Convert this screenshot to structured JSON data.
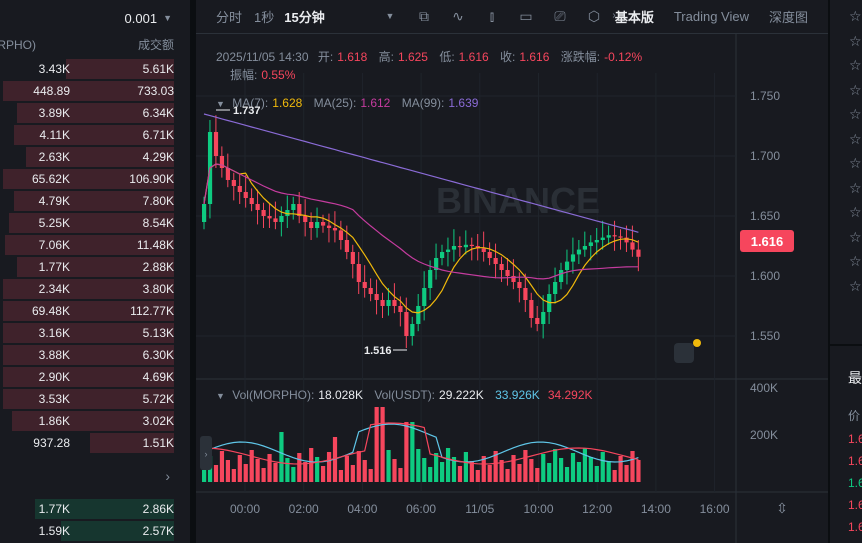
{
  "orderbook": {
    "tick": "0.001",
    "col_amount": "量(MORPHO)",
    "col_total": "成交额",
    "asks": [
      {
        "amount": "3.43K",
        "total": "5.61K",
        "depth": 0.62
      },
      {
        "amount": "448.89",
        "total": "733.03",
        "depth": 0.98
      },
      {
        "amount": "3.89K",
        "total": "6.34K",
        "depth": 0.9
      },
      {
        "amount": "4.11K",
        "total": "6.71K",
        "depth": 0.92
      },
      {
        "amount": "2.63K",
        "total": "4.29K",
        "depth": 0.85
      },
      {
        "amount": "65.62K",
        "total": "106.90K",
        "depth": 0.98
      },
      {
        "amount": "4.79K",
        "total": "7.80K",
        "depth": 0.92
      },
      {
        "amount": "5.25K",
        "total": "8.54K",
        "depth": 0.95
      },
      {
        "amount": "7.06K",
        "total": "11.48K",
        "depth": 0.97
      },
      {
        "amount": "1.77K",
        "total": "2.88K",
        "depth": 0.9
      },
      {
        "amount": "2.34K",
        "total": "3.80K",
        "depth": 0.98
      },
      {
        "amount": "69.48K",
        "total": "112.77K",
        "depth": 0.98
      },
      {
        "amount": "3.16K",
        "total": "5.13K",
        "depth": 0.98
      },
      {
        "amount": "3.88K",
        "total": "6.30K",
        "depth": 0.98
      },
      {
        "amount": "2.90K",
        "total": "4.69K",
        "depth": 0.98
      },
      {
        "amount": "3.53K",
        "total": "5.72K",
        "depth": 0.98
      },
      {
        "amount": "1.86K",
        "total": "3.02K",
        "depth": 0.93
      },
      {
        "amount": "937.28",
        "total": "1.51K",
        "depth": 0.48
      }
    ],
    "more": "›",
    "bids": [
      {
        "amount": "1.77K",
        "total": "2.86K",
        "depth": 0.8
      },
      {
        "amount": "1.59K",
        "total": "2.57K",
        "depth": 0.65
      }
    ]
  },
  "toolbar": {
    "time": "分时",
    "s1": "1秒",
    "m15": "15分钟",
    "basic": "基本版",
    "tv": "Trading View",
    "depth": "深度图"
  },
  "ohlc": {
    "date": "2025/11/05 14:30",
    "open_l": "开:",
    "open": "1.618",
    "high_l": "高:",
    "high": "1.625",
    "low_l": "低:",
    "low": "1.616",
    "close_l": "收:",
    "close": "1.616",
    "chg_l": "涨跌幅:",
    "chg": "-0.12%",
    "amp_l": "振幅:",
    "amp": "0.55%"
  },
  "ma": {
    "ma7_l": "MA(7):",
    "ma7": "1.628",
    "ma25_l": "MA(25):",
    "ma25": "1.612",
    "ma99_l": "MA(99):",
    "ma99": "1.639"
  },
  "vol": {
    "l1": "Vol(MORPHO):",
    "v1": "18.028K",
    "l2": "Vol(USDT):",
    "v2": "29.222K",
    "v3": "33.926K",
    "v4": "34.292K"
  },
  "price_axis": [
    "1.750",
    "1.700",
    "1.650",
    "1.600",
    "1.550"
  ],
  "current_price": "1.616",
  "high_mark": "1.737",
  "low_mark": "1.516",
  "vol_axis": [
    "400K",
    "200K"
  ],
  "time_axis": [
    "00:00",
    "02:00",
    "04:00",
    "06:00",
    "11/05",
    "10:00",
    "12:00",
    "14:00",
    "16:00"
  ],
  "watermark": "BINANCE",
  "colors": {
    "up": "#0ecb81",
    "down": "#f6465d",
    "ma7": "#f0b90b",
    "ma25": "#c53c9f",
    "ma99": "#8a6bd6"
  },
  "right_panel": {
    "title": "最",
    "col": "价",
    "prices": [
      "1.6",
      "1.6",
      "1.6",
      "1.6",
      "1.6"
    ]
  }
}
